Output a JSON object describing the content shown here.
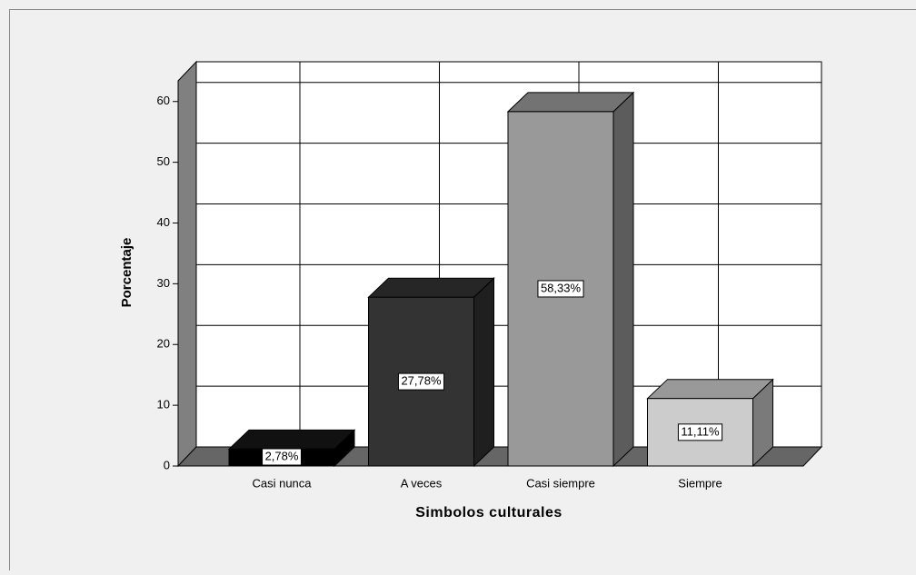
{
  "chart_data": {
    "type": "bar3d",
    "xlabel": "Simbolos culturales",
    "ylabel": "Porcentaje",
    "categories": [
      "Casi nunca",
      "A veces",
      "Casi siempre",
      "Siempre"
    ],
    "values": [
      2.78,
      27.78,
      58.33,
      11.11
    ],
    "value_labels": [
      "2,78%",
      "27,78%",
      "58,33%",
      "11,11%"
    ],
    "colors": [
      "#000000",
      "#333333",
      "#999999",
      "#cccccc"
    ],
    "ylim": [
      0,
      63.4
    ],
    "yticks": [
      0,
      10,
      20,
      30,
      40,
      50,
      60
    ],
    "grid": true
  }
}
